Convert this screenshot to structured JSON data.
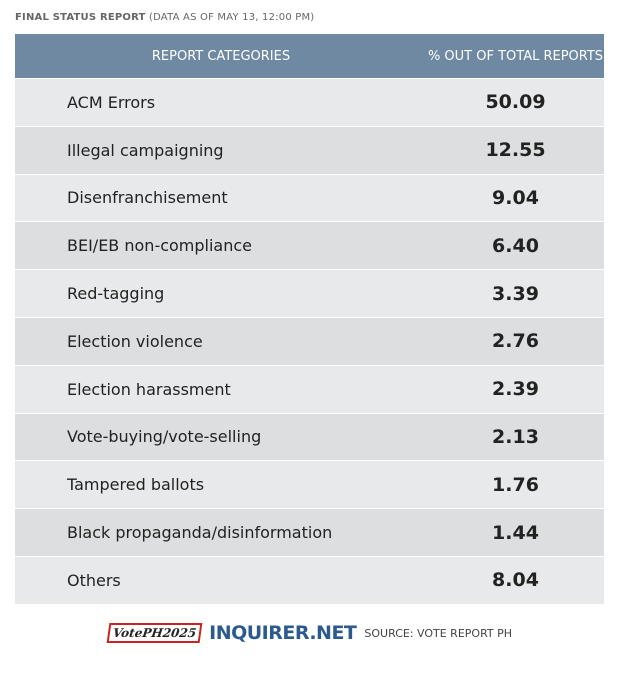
{
  "title": {
    "label": "FINAL STATUS REPORT",
    "note": "(DATA AS OF MAY 13, 12:00 PM)"
  },
  "table": {
    "header": [
      "REPORT CATEGORIES",
      "% OUT OF TOTAL REPORTS"
    ],
    "rows": [
      [
        "ACM Errors",
        "50.09"
      ],
      [
        "Illegal campaigning",
        "12.55"
      ],
      [
        "Disenfranchisement",
        "9.04"
      ],
      [
        "BEI/EB non-compliance",
        "6.40"
      ],
      [
        "Red-tagging",
        "3.39"
      ],
      [
        "Election violence",
        "2.76"
      ],
      [
        "Election harassment",
        "2.39"
      ],
      [
        "Vote-buying/vote-selling",
        "2.13"
      ],
      [
        "Tampered ballots",
        "1.76"
      ],
      [
        "Black propaganda/disinformation",
        "1.44"
      ],
      [
        "Others",
        "8.04"
      ]
    ]
  },
  "footer": {
    "logo": "VotePH2025",
    "brand": "INQUIRER.NET",
    "source": "SOURCE: VOTE REPORT PH"
  }
}
